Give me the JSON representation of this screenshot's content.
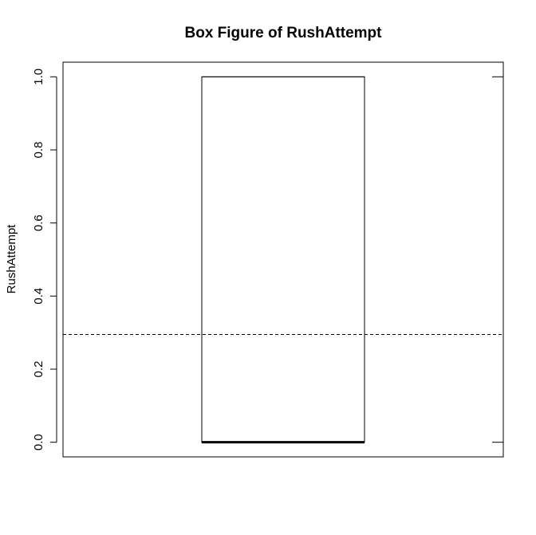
{
  "chart_data": {
    "type": "box",
    "title": "Box Figure of RushAttempt",
    "xlabel": "",
    "ylabel": "RushAttempt",
    "ylim": [
      -0.04,
      1.04
    ],
    "yticks": [
      0.0,
      0.2,
      0.4,
      0.6,
      0.8,
      1.0
    ],
    "ytick_labels": [
      "0.0",
      "0.2",
      "0.4",
      "0.6",
      "0.8",
      "1.0"
    ],
    "box": {
      "min": 0.0,
      "q1": 0.0,
      "median": 0.0,
      "q3": 1.0,
      "max": 1.0
    },
    "reference_line": {
      "y": 0.295,
      "style": "dashed"
    },
    "grid": false
  }
}
